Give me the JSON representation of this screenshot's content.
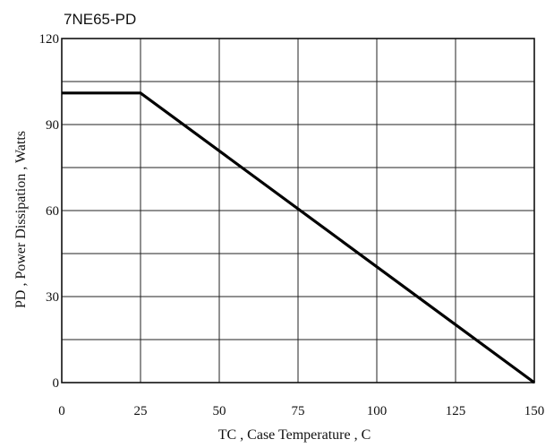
{
  "chart_data": {
    "type": "line",
    "title": "7NE65-PD",
    "xlabel": "TC , Case Temperature , C",
    "ylabel": "PD , Power Dissipation , Watts",
    "xlim": [
      0,
      150
    ],
    "ylim": [
      0,
      120
    ],
    "xticks": [
      0,
      25,
      50,
      75,
      100,
      125,
      150
    ],
    "yticks": [
      0,
      30,
      60,
      90,
      120
    ],
    "x_gridlines": [
      0,
      25,
      50,
      75,
      100,
      125,
      150
    ],
    "y_gridlines": [
      0,
      15,
      30,
      45,
      60,
      75,
      90,
      105,
      120
    ],
    "grid": true,
    "series": [
      {
        "x": [
          0,
          25,
          150
        ],
        "y": [
          101,
          101,
          0
        ]
      }
    ]
  }
}
